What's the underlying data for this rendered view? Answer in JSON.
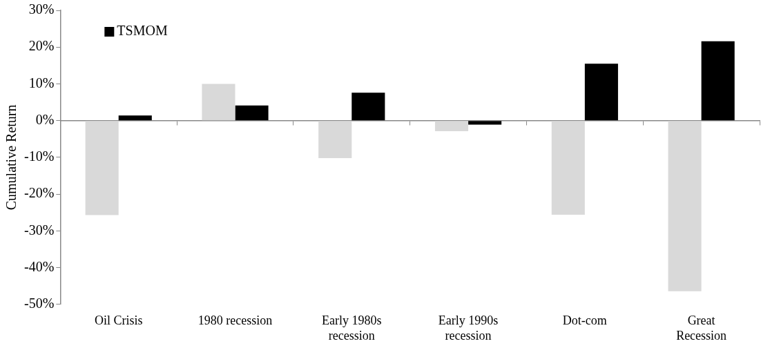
{
  "chart_data": {
    "type": "bar",
    "ylabel": "Cumulative Return",
    "categories": [
      "Oil Crisis",
      "1980 recession",
      "Early 1980s recession",
      "Early 1990s recession",
      "Dot-com",
      "Great Recession"
    ],
    "series": [
      {
        "color": "#d9d9d9",
        "values": [
          -25.7,
          10.0,
          -10.2,
          -2.9,
          -25.6,
          -46.4
        ]
      },
      {
        "name": "TSMOM",
        "color": "#000000",
        "values": [
          1.4,
          4.1,
          7.6,
          -1.1,
          15.5,
          21.6
        ]
      }
    ],
    "ylim": [
      -50,
      30
    ],
    "yticks": [
      {
        "value": -50,
        "label": "-50%"
      },
      {
        "value": -40,
        "label": "-40%"
      },
      {
        "value": -30,
        "label": "-30%"
      },
      {
        "value": -20,
        "label": "-20%"
      },
      {
        "value": -10,
        "label": "-10%"
      },
      {
        "value": 0,
        "label": "0%"
      },
      {
        "value": 10,
        "label": "10%"
      },
      {
        "value": 20,
        "label": "20%"
      },
      {
        "value": 30,
        "label": "30%"
      }
    ],
    "legend": "top left"
  }
}
